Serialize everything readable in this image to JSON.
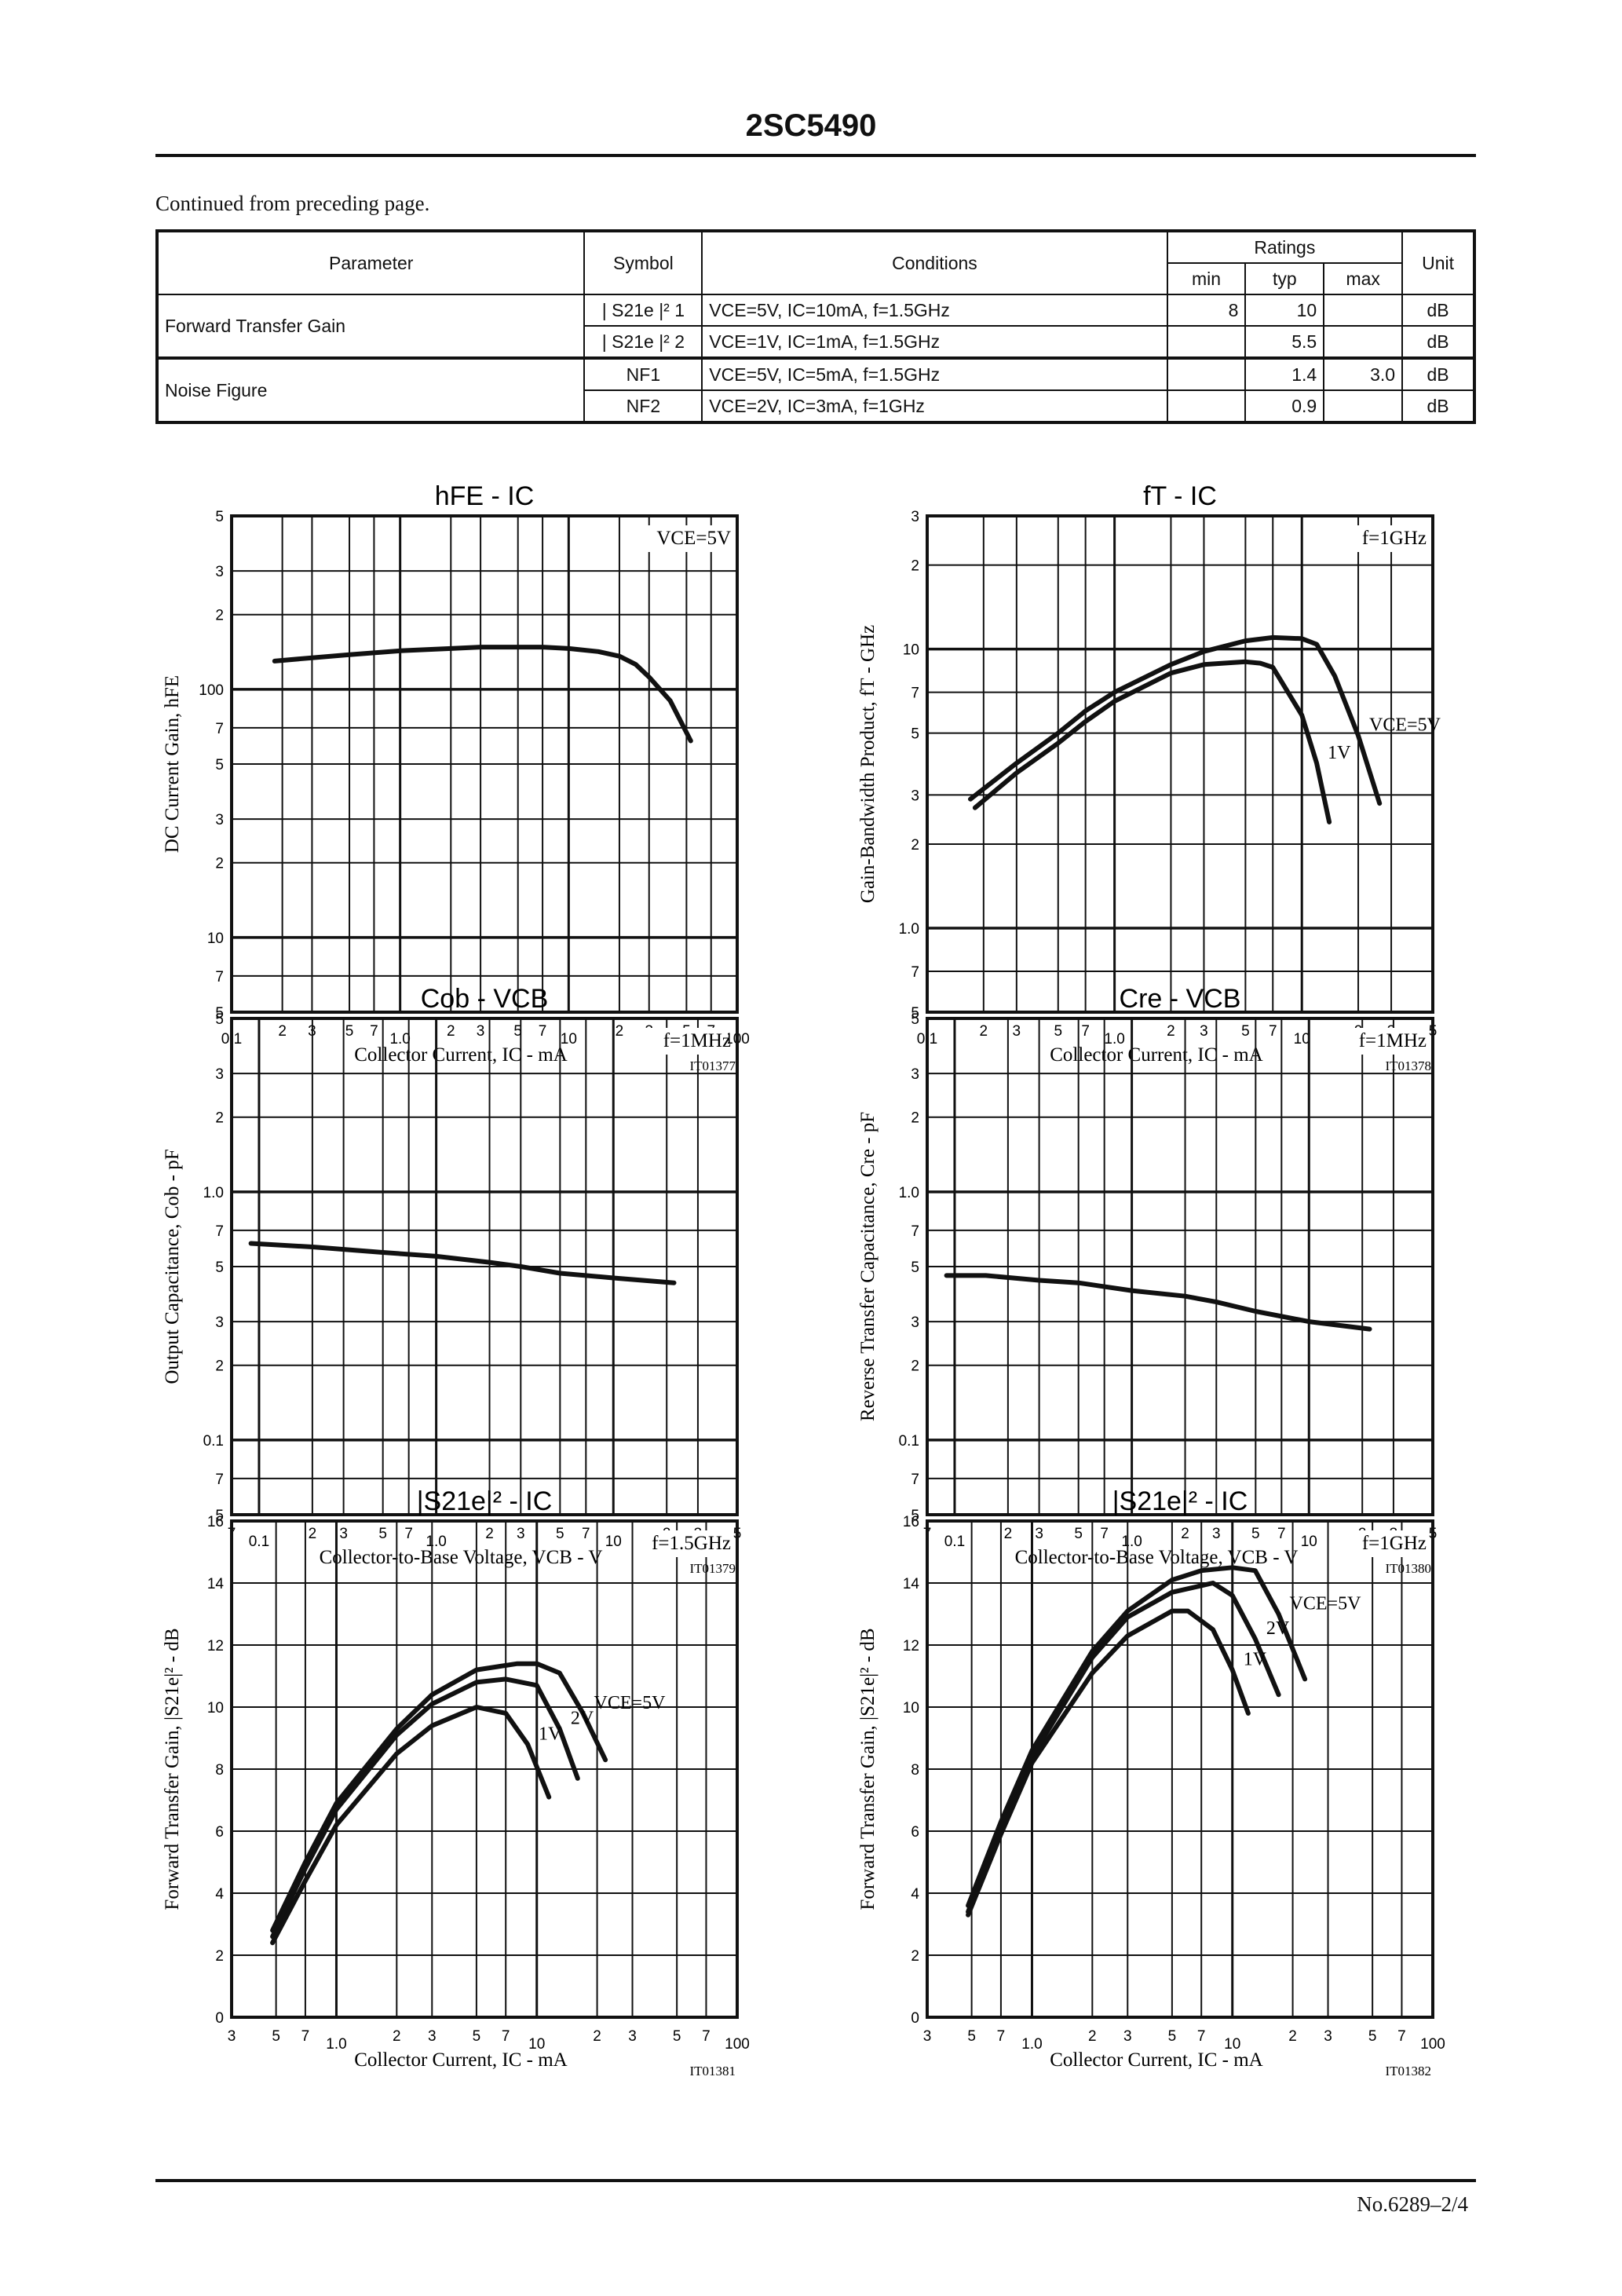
{
  "header": {
    "title": "2SC5490"
  },
  "intro": {
    "continued": "Continued from preceding page."
  },
  "table": {
    "headers": {
      "parameter": "Parameter",
      "symbol": "Symbol",
      "conditions": "Conditions",
      "ratings": "Ratings",
      "min": "min",
      "typ": "typ",
      "max": "max",
      "unit": "Unit"
    },
    "rows": [
      {
        "parameter": "Forward Transfer Gain",
        "symbol": "| S21e |² 1",
        "conditions": "VCE=5V, IC=10mA, f=1.5GHz",
        "min": "8",
        "typ": "10",
        "max": "",
        "unit": "dB"
      },
      {
        "parameter": "",
        "symbol": "| S21e |² 2",
        "conditions": "VCE=1V, IC=1mA, f=1.5GHz",
        "min": "",
        "typ": "5.5",
        "max": "",
        "unit": "dB"
      },
      {
        "parameter": "Noise Figure",
        "symbol": "NF1",
        "conditions": "VCE=5V, IC=5mA, f=1.5GHz",
        "min": "",
        "typ": "1.4",
        "max": "3.0",
        "unit": "dB"
      },
      {
        "parameter": "",
        "symbol": "NF2",
        "conditions": "VCE=2V, IC=3mA, f=1GHz",
        "min": "",
        "typ": "0.9",
        "max": "",
        "unit": "dB"
      }
    ]
  },
  "footer": {
    "doc_no": "No.6289–2/4"
  },
  "chart_data": [
    {
      "id": "hfe-ic",
      "type": "line",
      "title": "hFE - IC",
      "xlabel": "Collector Current, IC - mA",
      "ylabel": "DC Current Gain, hFE",
      "xscale": "log",
      "yscale": "log",
      "xlim": [
        0.1,
        100
      ],
      "ylim": [
        5,
        500
      ],
      "xticks": [
        "0.1",
        "2",
        "3",
        "5",
        "7",
        "1.0",
        "2",
        "3",
        "5",
        "7",
        "10",
        "2",
        "3",
        "5",
        "7",
        "100"
      ],
      "yticks": [
        "5",
        "7",
        "10",
        "2",
        "3",
        "5",
        "7",
        "100",
        "2",
        "3",
        "5"
      ],
      "annotation": "VCE=5V",
      "code": "IT01377",
      "series": [
        {
          "name": "VCE=5V",
          "x": [
            0.18,
            0.3,
            0.5,
            1.0,
            2,
            3,
            5,
            7,
            10,
            15,
            20,
            25,
            30,
            40,
            53
          ],
          "y": [
            130,
            134,
            138,
            143,
            146,
            148,
            148,
            148,
            146,
            142,
            136,
            126,
            112,
            90,
            62
          ]
        }
      ]
    },
    {
      "id": "ft-ic",
      "type": "line",
      "title": "fT - IC",
      "xlabel": "Collector Current, IC - mA",
      "ylabel": "Gain-Bandwidth Product, fT - GHz",
      "xscale": "log",
      "yscale": "log",
      "xlim": [
        0.1,
        50
      ],
      "ylim": [
        0.5,
        30
      ],
      "xticks": [
        "0.1",
        "2",
        "3",
        "5",
        "7",
        "1.0",
        "2",
        "3",
        "5",
        "7",
        "10",
        "2",
        "3",
        "5"
      ],
      "yticks": [
        "5",
        "7",
        "1.0",
        "2",
        "3",
        "5",
        "7",
        "10",
        "2",
        "3"
      ],
      "annotation": "f=1GHz",
      "code": "IT01378",
      "series": [
        {
          "name": "VCE=5V",
          "x": [
            0.17,
            0.3,
            0.5,
            0.7,
            1.0,
            2,
            3,
            5,
            7,
            10,
            12,
            15,
            20,
            26
          ],
          "y": [
            2.9,
            3.9,
            5.0,
            6.0,
            7.0,
            8.8,
            9.8,
            10.7,
            11.0,
            10.9,
            10.4,
            8.0,
            4.9,
            2.8
          ]
        },
        {
          "name": "1V",
          "x": [
            0.18,
            0.3,
            0.5,
            0.7,
            1.0,
            2,
            3,
            5,
            6,
            7,
            10,
            12,
            14
          ],
          "y": [
            2.7,
            3.6,
            4.6,
            5.5,
            6.5,
            8.2,
            8.8,
            9.0,
            8.9,
            8.6,
            5.8,
            3.9,
            2.4
          ]
        }
      ]
    },
    {
      "id": "cob-vcb",
      "type": "line",
      "title": "Cob - VCB",
      "xlabel": "Collector-to-Base Voltage, VCB - V",
      "ylabel": "Output Capacitance, Cob - pF",
      "xscale": "log",
      "yscale": "log",
      "xlim": [
        0.07,
        50
      ],
      "ylim": [
        0.05,
        5
      ],
      "xticks": [
        "7",
        "0.1",
        "2",
        "3",
        "5",
        "7",
        "1.0",
        "2",
        "3",
        "5",
        "7",
        "10",
        "2",
        "3",
        "5"
      ],
      "yticks": [
        "5",
        "7",
        "0.1",
        "2",
        "3",
        "5",
        "7",
        "1.0",
        "2",
        "3",
        "5"
      ],
      "annotation": "f=1MHz",
      "code": "IT01379",
      "series": [
        {
          "name": "f=1MHz",
          "x": [
            0.09,
            0.2,
            0.5,
            1.0,
            2,
            3,
            5,
            10,
            22
          ],
          "y": [
            0.62,
            0.6,
            0.57,
            0.55,
            0.52,
            0.5,
            0.47,
            0.45,
            0.43
          ]
        }
      ]
    },
    {
      "id": "cre-vcb",
      "type": "line",
      "title": "Cre - VCB",
      "xlabel": "Collector-to-Base Voltage, VCB - V",
      "ylabel": "Reverse Transfer Capacitance, Cre - pF",
      "xscale": "log",
      "yscale": "log",
      "xlim": [
        0.07,
        50
      ],
      "ylim": [
        0.05,
        5
      ],
      "xticks": [
        "7",
        "0.1",
        "2",
        "3",
        "5",
        "7",
        "1.0",
        "2",
        "3",
        "5",
        "7",
        "10",
        "2",
        "3",
        "5"
      ],
      "yticks": [
        "5",
        "7",
        "0.1",
        "2",
        "3",
        "5",
        "7",
        "1.0",
        "2",
        "3",
        "5"
      ],
      "annotation": "f=1MHz",
      "code": "IT01380",
      "series": [
        {
          "name": "f=1MHz",
          "x": [
            0.09,
            0.15,
            0.3,
            0.5,
            1.0,
            2,
            3,
            5,
            10,
            22
          ],
          "y": [
            0.46,
            0.46,
            0.44,
            0.43,
            0.4,
            0.38,
            0.36,
            0.33,
            0.3,
            0.28
          ]
        }
      ]
    },
    {
      "id": "s21-ic-1p5ghz",
      "type": "line",
      "title": "|S21e|² - IC",
      "xlabel": "Collector Current, IC - mA",
      "ylabel": "Forward Transfer Gain, |S21e|² - dB",
      "xscale": "log",
      "yscale": "linear",
      "xlim": [
        0.3,
        100
      ],
      "ylim": [
        0,
        16
      ],
      "xticks": [
        "3",
        "5",
        "7",
        "1.0",
        "2",
        "3",
        "5",
        "7",
        "10",
        "2",
        "3",
        "5",
        "7",
        "100"
      ],
      "yticks": [
        "0",
        "2",
        "4",
        "6",
        "8",
        "10",
        "12",
        "14",
        "16"
      ],
      "annotation": "f=1.5GHz",
      "code": "IT01381",
      "series": [
        {
          "name": "VCE=5V",
          "x": [
            0.48,
            0.7,
            1.0,
            2,
            3,
            5,
            8,
            10,
            13,
            17,
            22
          ],
          "y": [
            2.8,
            5.0,
            6.9,
            9.3,
            10.4,
            11.2,
            11.4,
            11.4,
            11.1,
            9.8,
            8.3
          ]
        },
        {
          "name": "2V",
          "x": [
            0.48,
            0.7,
            1.0,
            2,
            3,
            5,
            7,
            10,
            13,
            16
          ],
          "y": [
            2.6,
            4.8,
            6.7,
            9.1,
            10.1,
            10.8,
            10.9,
            10.7,
            9.3,
            7.7
          ]
        },
        {
          "name": "1V",
          "x": [
            0.48,
            0.7,
            1.0,
            2,
            3,
            5,
            7,
            9,
            11.5
          ],
          "y": [
            2.4,
            4.4,
            6.2,
            8.5,
            9.4,
            10.0,
            9.8,
            8.8,
            7.1
          ]
        }
      ]
    },
    {
      "id": "s21-ic-1ghz",
      "type": "line",
      "title": "|S21e|² - IC",
      "xlabel": "Collector Current, IC - mA",
      "ylabel": "Forward Transfer Gain, |S21e|² - dB",
      "xscale": "log",
      "yscale": "linear",
      "xlim": [
        0.3,
        100
      ],
      "ylim": [
        0,
        16
      ],
      "xticks": [
        "3",
        "5",
        "7",
        "1.0",
        "2",
        "3",
        "5",
        "7",
        "10",
        "2",
        "3",
        "5",
        "7",
        "100"
      ],
      "yticks": [
        "0",
        "2",
        "4",
        "6",
        "8",
        "10",
        "12",
        "14",
        "16"
      ],
      "annotation": "f=1GHz",
      "code": "IT01382",
      "series": [
        {
          "name": "VCE=5V",
          "x": [
            0.48,
            0.7,
            1.0,
            2,
            3,
            5,
            7,
            10,
            13,
            17,
            23
          ],
          "y": [
            3.6,
            6.3,
            8.6,
            11.8,
            13.1,
            14.1,
            14.4,
            14.5,
            14.4,
            13.0,
            10.9
          ]
        },
        {
          "name": "2V",
          "x": [
            0.48,
            0.7,
            1.0,
            2,
            3,
            5,
            8,
            10,
            13,
            17
          ],
          "y": [
            3.4,
            6.1,
            8.4,
            11.6,
            12.9,
            13.7,
            14.0,
            13.6,
            12.2,
            10.4
          ]
        },
        {
          "name": "1V",
          "x": [
            0.48,
            0.7,
            1.0,
            2,
            3,
            5,
            6,
            8,
            10,
            12
          ],
          "y": [
            3.3,
            5.9,
            8.2,
            11.1,
            12.3,
            13.1,
            13.1,
            12.5,
            11.2,
            9.8
          ]
        }
      ]
    }
  ]
}
